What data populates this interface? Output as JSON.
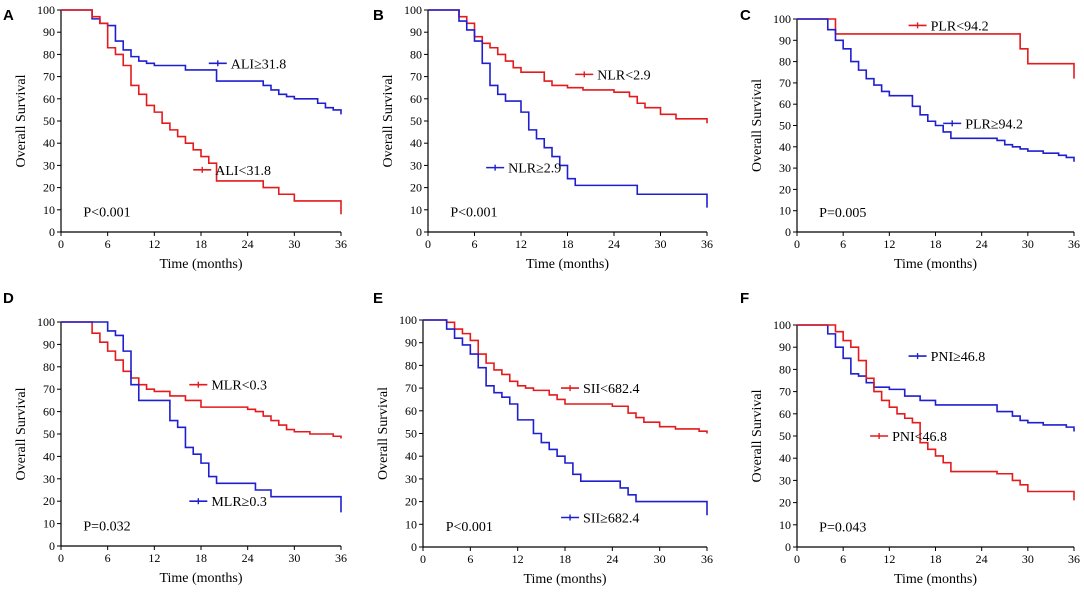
{
  "chart_data": [
    {
      "type": "line",
      "panel": "A",
      "xlabel": "Time (months)",
      "ylabel": "Overall Survival",
      "xlim": [
        0,
        36
      ],
      "ylim": [
        0,
        100
      ],
      "xticks": [
        0,
        6,
        12,
        18,
        24,
        30,
        36
      ],
      "yticks": [
        0,
        10,
        20,
        30,
        40,
        50,
        60,
        70,
        80,
        90,
        100
      ],
      "annotation": "P<0.001",
      "series": [
        {
          "name": "ALI≥31.8",
          "color": "#1f1fd0",
          "x": [
            0,
            3,
            4,
            5,
            6,
            7,
            8,
            9,
            10,
            11,
            12,
            16,
            20,
            26,
            27,
            28,
            29,
            30,
            33,
            34,
            35,
            36
          ],
          "y": [
            100,
            100,
            96,
            94,
            93,
            86,
            82,
            79,
            77,
            76,
            75,
            73,
            68,
            66,
            64,
            62,
            61,
            60,
            58,
            56,
            55,
            53
          ],
          "label_x": 19,
          "label_y": 76
        },
        {
          "name": "ALI<31.8",
          "color": "#e41a1c",
          "x": [
            0,
            3,
            4,
            5,
            6,
            7,
            8,
            9,
            10,
            11,
            12,
            13,
            14,
            15,
            16,
            17,
            18,
            19,
            20,
            26,
            28,
            30,
            36
          ],
          "y": [
            100,
            100,
            97,
            94,
            83,
            80,
            75,
            66,
            62,
            57,
            54,
            49,
            46,
            43,
            40,
            37,
            34,
            31,
            23,
            20,
            17,
            14,
            8
          ],
          "label_x": 17,
          "label_y": 28
        }
      ]
    },
    {
      "type": "line",
      "panel": "B",
      "xlabel": "Time (months)",
      "ylabel": "Overall Survival",
      "xlim": [
        0,
        36
      ],
      "ylim": [
        0,
        100
      ],
      "xticks": [
        0,
        6,
        12,
        18,
        24,
        30,
        36
      ],
      "yticks": [
        0,
        10,
        20,
        30,
        40,
        50,
        60,
        70,
        80,
        90,
        100
      ],
      "annotation": "P<0.001",
      "series": [
        {
          "name": "NLR<2.9",
          "color": "#e41a1c",
          "x": [
            0,
            3,
            4,
            5,
            6,
            7,
            8,
            9,
            10,
            11,
            12,
            15,
            16,
            18,
            20,
            24,
            26,
            27,
            28,
            30,
            32,
            36
          ],
          "y": [
            100,
            100,
            97,
            94,
            88,
            85,
            83,
            80,
            77,
            74,
            72,
            68,
            66,
            65,
            64,
            63,
            61,
            58,
            56,
            53,
            51,
            49
          ],
          "label_x": 19,
          "label_y": 71
        },
        {
          "name": "NLR≥2.9",
          "color": "#1f1fd0",
          "x": [
            0,
            3,
            4,
            5,
            6,
            7,
            8,
            9,
            10,
            12,
            13,
            14,
            15,
            16,
            17,
            18,
            19,
            20,
            27,
            36
          ],
          "y": [
            100,
            100,
            95,
            91,
            86,
            76,
            66,
            62,
            59,
            54,
            46,
            42,
            38,
            34,
            30,
            24,
            21,
            21,
            17,
            11
          ],
          "label_x": 7.5,
          "label_y": 29
        }
      ]
    },
    {
      "type": "line",
      "panel": "C",
      "xlabel": "Time (months)",
      "ylabel": "Overall Survival",
      "xlim": [
        0,
        36
      ],
      "ylim": [
        0,
        100
      ],
      "xticks": [
        0,
        6,
        12,
        18,
        24,
        30,
        36
      ],
      "yticks": [
        0,
        10,
        20,
        30,
        40,
        50,
        60,
        70,
        80,
        90,
        100
      ],
      "annotation": "P=0.005",
      "series": [
        {
          "name": "PLR<94.2",
          "color": "#e41a1c",
          "x": [
            0,
            4,
            5,
            28,
            29,
            30,
            36
          ],
          "y": [
            100,
            100,
            93,
            93,
            86,
            79,
            72
          ],
          "label_x": 14.5,
          "label_y": 97
        },
        {
          "name": "PLR≥94.2",
          "color": "#1f1fd0",
          "x": [
            0,
            3,
            4,
            5,
            6,
            7,
            8,
            9,
            10,
            11,
            12,
            15,
            16,
            17,
            18,
            19,
            20,
            26,
            27,
            28,
            29,
            30,
            32,
            34,
            35,
            36
          ],
          "y": [
            100,
            100,
            95,
            90,
            86,
            80,
            76,
            72,
            69,
            66,
            64,
            59,
            55,
            52,
            50,
            47,
            44,
            43,
            41,
            40,
            39,
            38,
            37,
            36,
            35,
            33
          ],
          "label_x": 19,
          "label_y": 51
        }
      ]
    },
    {
      "type": "line",
      "panel": "D",
      "xlabel": "Time (months)",
      "ylabel": "Overall Survival",
      "xlim": [
        0,
        36
      ],
      "ylim": [
        0,
        100
      ],
      "xticks": [
        0,
        6,
        12,
        18,
        24,
        30,
        36
      ],
      "yticks": [
        0,
        10,
        20,
        30,
        40,
        50,
        60,
        70,
        80,
        90,
        100
      ],
      "annotation": "P=0.032",
      "series": [
        {
          "name": "MLR<0.3",
          "color": "#e41a1c",
          "x": [
            0,
            3,
            4,
            5,
            6,
            7,
            8,
            9,
            10,
            11,
            12,
            14,
            16,
            18,
            24,
            25,
            26,
            27,
            28,
            29,
            30,
            32,
            35,
            36
          ],
          "y": [
            100,
            100,
            95,
            91,
            87,
            83,
            78,
            75,
            72,
            70,
            69,
            67,
            65,
            62,
            61,
            60,
            58,
            56,
            54,
            52,
            51,
            50,
            49,
            48
          ],
          "label_x": 16.5,
          "label_y": 72
        },
        {
          "name": "MLR≥0.3",
          "color": "#1f1fd0",
          "x": [
            0,
            5,
            6,
            7,
            8,
            9,
            10,
            12,
            14,
            15,
            16,
            17,
            18,
            19,
            20,
            24,
            25,
            26,
            27,
            35,
            36
          ],
          "y": [
            100,
            100,
            96,
            94,
            87,
            72,
            65,
            65,
            56,
            53,
            44,
            41,
            37,
            31,
            28,
            28,
            25,
            25,
            22,
            22,
            15
          ],
          "label_x": 16.5,
          "label_y": 20
        }
      ]
    },
    {
      "type": "line",
      "panel": "E",
      "xlabel": "Time (months)",
      "ylabel": "Overall Survival",
      "xlim": [
        0,
        36
      ],
      "ylim": [
        0,
        100
      ],
      "xticks": [
        0,
        6,
        12,
        18,
        24,
        30,
        36
      ],
      "yticks": [
        0,
        10,
        20,
        30,
        40,
        50,
        60,
        70,
        80,
        90,
        100
      ],
      "annotation": "P<0.001",
      "series": [
        {
          "name": "SII<682.4",
          "color": "#e41a1c",
          "x": [
            0,
            2,
            3,
            4,
            5,
            6,
            7,
            8,
            9,
            10,
            11,
            12,
            13,
            14,
            16,
            17,
            18,
            24,
            26,
            27,
            28,
            30,
            32,
            35,
            36
          ],
          "y": [
            100,
            100,
            99,
            96,
            94,
            91,
            85,
            81,
            78,
            76,
            73,
            71,
            70,
            69,
            67,
            65,
            63,
            62,
            59,
            57,
            55,
            53,
            52,
            51,
            50
          ],
          "label_x": 17.5,
          "label_y": 70
        },
        {
          "name": "SII≥682.4",
          "color": "#1f1fd0",
          "x": [
            0,
            2,
            3,
            4,
            5,
            6,
            7,
            8,
            9,
            10,
            11,
            12,
            14,
            15,
            16,
            17,
            18,
            19,
            20,
            24,
            25,
            26,
            27,
            36
          ],
          "y": [
            100,
            100,
            96,
            92,
            89,
            85,
            79,
            71,
            68,
            66,
            63,
            56,
            50,
            46,
            43,
            40,
            37,
            32,
            29,
            29,
            26,
            23,
            20,
            14
          ],
          "label_x": 17.5,
          "label_y": 13
        }
      ]
    },
    {
      "type": "line",
      "panel": "F",
      "xlabel": "Time (months)",
      "ylabel": "Overall Survival",
      "xlim": [
        0,
        36
      ],
      "ylim": [
        0,
        100
      ],
      "xticks": [
        0,
        6,
        12,
        18,
        24,
        30,
        36
      ],
      "yticks": [
        0,
        10,
        20,
        30,
        40,
        50,
        60,
        70,
        80,
        90,
        100
      ],
      "annotation": "P=0.043",
      "series": [
        {
          "name": "PNI≥46.8",
          "color": "#1f1fd0",
          "x": [
            0,
            3,
            4,
            5,
            6,
            7,
            8,
            9,
            10,
            12,
            14,
            16,
            18,
            24,
            26,
            28,
            29,
            30,
            32,
            35,
            36
          ],
          "y": [
            100,
            100,
            96,
            90,
            85,
            78,
            77,
            74,
            72,
            71,
            68,
            66,
            64,
            64,
            61,
            59,
            57,
            56,
            55,
            54,
            52
          ],
          "label_x": 14.5,
          "label_y": 86
        },
        {
          "name": "PNI<46.8",
          "color": "#e41a1c",
          "x": [
            0,
            4,
            5,
            6,
            7,
            8,
            9,
            10,
            11,
            12,
            13,
            14,
            15,
            16,
            17,
            18,
            19,
            20,
            24,
            26,
            28,
            29,
            30,
            36
          ],
          "y": [
            100,
            100,
            97,
            93,
            90,
            84,
            76,
            70,
            66,
            63,
            60,
            58,
            56,
            47,
            44,
            41,
            38,
            34,
            34,
            33,
            30,
            28,
            25,
            21
          ],
          "label_x": 9.5,
          "label_y": 50
        }
      ]
    }
  ]
}
